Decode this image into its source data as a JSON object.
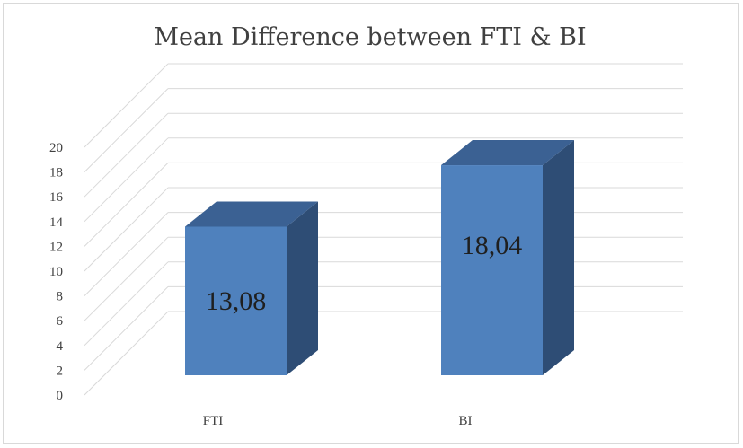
{
  "chart_data": {
    "type": "bar",
    "title": "Mean Difference between FTI & BI",
    "categories": [
      "FTI",
      "BI"
    ],
    "values": [
      13.08,
      18.04
    ],
    "value_labels": [
      "13,08",
      "18,04"
    ],
    "ylim": [
      0,
      20
    ],
    "ytick_step": 2,
    "yticks": [
      "0",
      "2",
      "4",
      "6",
      "8",
      "10",
      "12",
      "14",
      "16",
      "18",
      "20"
    ],
    "grid": true,
    "legend": "none",
    "style": "3d-column",
    "colors": {
      "front": "#4f81bd",
      "side": "#2e4d75",
      "top": "#3b6193",
      "grid": "#d9d9d9"
    }
  }
}
